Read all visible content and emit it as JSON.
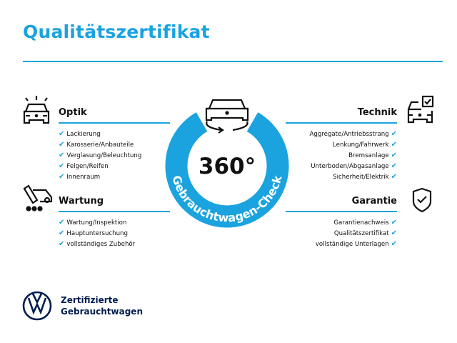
{
  "title": "Qualitätszertifikat",
  "colors": {
    "accent": "#1aa3df",
    "brand": "#001e50"
  },
  "badge": {
    "big": "360°",
    "ring_text": "Gebrauchtwagen-Check",
    "icon": "car-rotate-icon"
  },
  "sections": {
    "optik": {
      "heading": "Optik",
      "icon": "car-lights-icon",
      "items": [
        "Lackierung",
        "Karosserie/Anbauteile",
        "Verglasung/Beleuchtung",
        "Felgen/Reifen",
        "Innenraum"
      ]
    },
    "wartung": {
      "heading": "Wartung",
      "icon": "service-tool-icon",
      "items": [
        "Wartung/Inspektion",
        "Hauptuntersuchung",
        "vollständiges Zubehör"
      ]
    },
    "technik": {
      "heading": "Technik",
      "icon": "car-checkbox-icon",
      "items": [
        "Aggregate/Antriebsstrang",
        "Lenkung/Fahrwerk",
        "Bremsanlage",
        "Unterboden/Abgasanlage",
        "Sicherheit/Elektrik"
      ]
    },
    "garantie": {
      "heading": "Garantie",
      "icon": "shield-check-icon",
      "items": [
        "Garantienachweis",
        "Qualitätszertifikat",
        "vollständige Unterlagen"
      ]
    }
  },
  "check_glyph": "✔",
  "footer": {
    "line1": "Zertifizierte",
    "line2": "Gebrauchtwagen",
    "logo": "vw-logo"
  }
}
